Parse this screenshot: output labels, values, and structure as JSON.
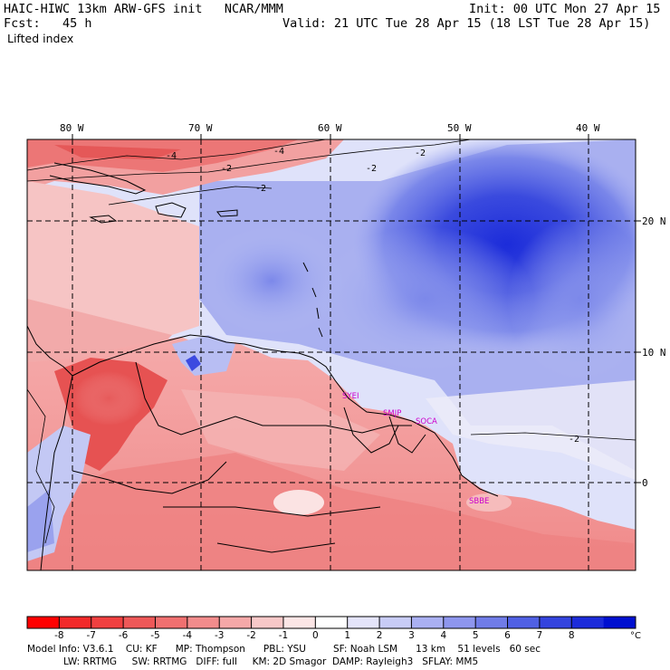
{
  "header": {
    "title": "HAIC-HIWC 13km ARW-GFS init   NCAR/MMM",
    "init": "Init: 00 UTC Mon 27 Apr 15",
    "forecast": "Fcst:   45 h",
    "valid": "Valid: 21 UTC Tue 28 Apr 15 (18 LST Tue 28 Apr 15)",
    "field": "Lifted index"
  },
  "map": {
    "lon_labels": [
      "80 W",
      "70 W",
      "60 W",
      "50 W",
      "40 W"
    ],
    "lat_labels": [
      "20 N",
      "10 N",
      "0"
    ],
    "contour_labels": [
      "-4",
      "-4",
      "-2",
      "-2",
      "-2",
      "-2",
      "-2"
    ],
    "stations": [
      "SYEI",
      "SMJP",
      "SOCA",
      "SBBE"
    ],
    "colors": {
      "station": "#cc00cc",
      "coast": "#000000"
    }
  },
  "colorbar": {
    "ticks": [
      "-8",
      "-7",
      "-6",
      "-5",
      "-4",
      "-3",
      "-2",
      "-1",
      "0",
      "1",
      "2",
      "3",
      "4",
      "5",
      "6",
      "7",
      "8"
    ],
    "unit": "°C",
    "colors": [
      "#ff0000",
      "#f22a2a",
      "#f04040",
      "#ee5858",
      "#f07070",
      "#f28c8c",
      "#f5a8a8",
      "#f8c8c8",
      "#fce6e6",
      "#ffffff",
      "#e4e4fa",
      "#c8ccf6",
      "#aab0f2",
      "#8e96ee",
      "#707ce8",
      "#5060e4",
      "#3444de",
      "#1c2cda",
      "#0010d0"
    ]
  },
  "footer": {
    "line1": "Model Info: V3.6.1    CU: KF      MP: Thompson      PBL: YSU         SF: Noah LSM      13 km    51 levels   60 sec",
    "line2": "LW: RRTMG     SW: RRTMG   DIFF: full     KM: 2D Smagor  DAMP: Rayleigh3   SFLAY: MM5"
  }
}
